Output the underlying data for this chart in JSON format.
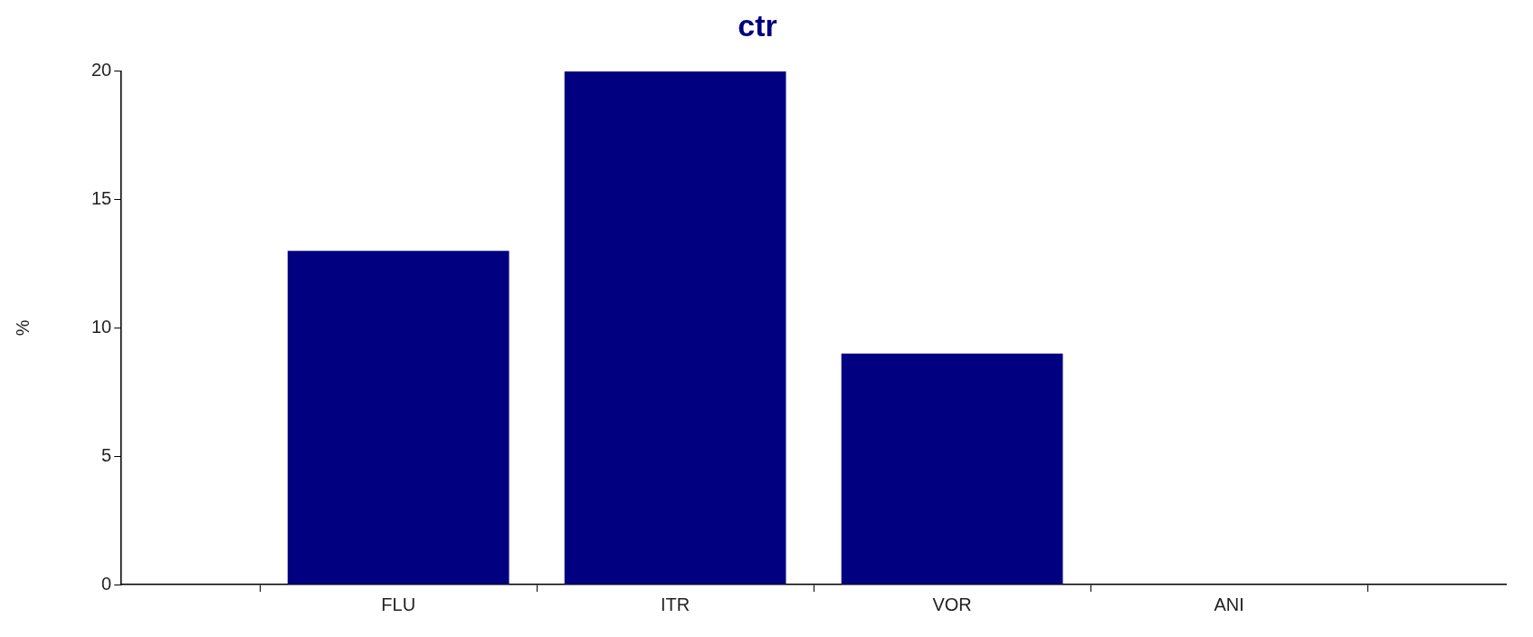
{
  "chart_data": {
    "type": "bar",
    "title": "ctr",
    "ylabel": "%",
    "categories": [
      "FLU",
      "ITR",
      "VOR",
      "ANI"
    ],
    "values": [
      13,
      20,
      9,
      0
    ],
    "color": "#000080",
    "ylim": [
      0,
      20
    ],
    "yticks": [
      0,
      5,
      10,
      15,
      20
    ],
    "grid": false,
    "legend": false
  }
}
